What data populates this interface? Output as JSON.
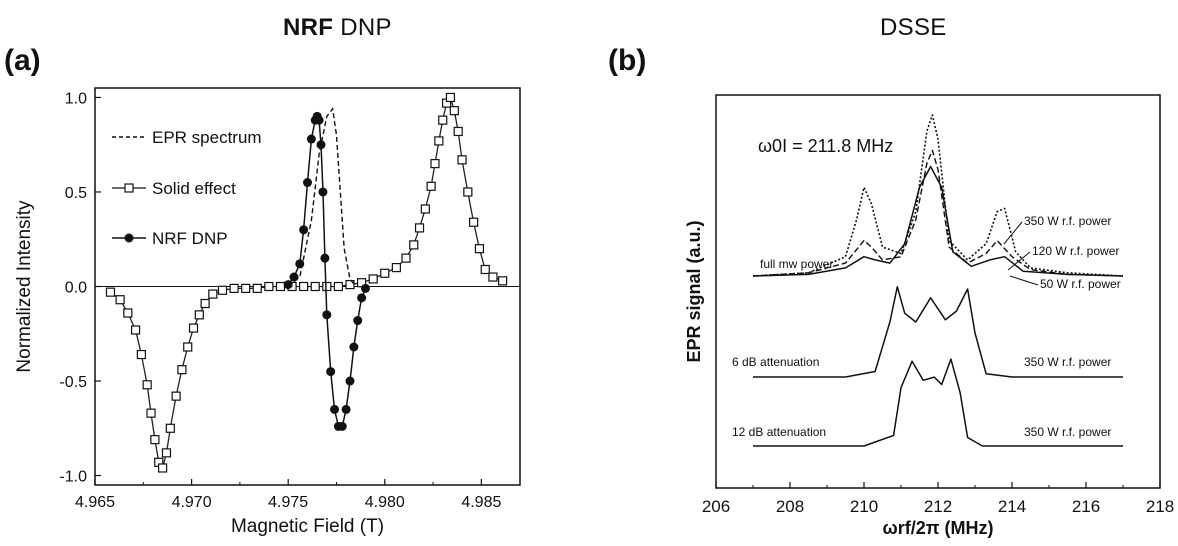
{
  "panel_a": {
    "title_bold": "NRF",
    "title_rest": " DNP",
    "label": "(a)"
  },
  "panel_b": {
    "title": "DSSE",
    "label": "(b)"
  },
  "chart_data": [
    {
      "type": "line",
      "panel": "(a)",
      "xlabel": "Magnetic Field (T)",
      "ylabel": "Normalized Intensity",
      "xlim": [
        4.965,
        4.987
      ],
      "ylim": [
        -1.05,
        1.05
      ],
      "xticks": [
        "4.965",
        "4.970",
        "4.975",
        "4.980",
        "4.985"
      ],
      "yticks": [
        "-1.0",
        "-0.5",
        "0.0",
        "0.5",
        "1.0"
      ],
      "zero_line": true,
      "grid": false,
      "legend_position": "top-left",
      "series": [
        {
          "name": "EPR spectrum",
          "style": "dashed",
          "x": [
            4.975,
            4.9756,
            4.9762,
            4.9766,
            4.977,
            4.9773,
            4.9775,
            4.9777,
            4.9779,
            4.9782,
            4.9785
          ],
          "y": [
            0.0,
            0.05,
            0.35,
            0.7,
            0.9,
            0.94,
            0.8,
            0.5,
            0.2,
            0.04,
            0.0
          ]
        },
        {
          "name": "Solid effect",
          "style": "open-square",
          "x": [
            4.9658,
            4.9663,
            4.9667,
            4.9671,
            4.9674,
            4.9677,
            4.9679,
            4.9681,
            4.9683,
            4.9685,
            4.9687,
            4.9689,
            4.9692,
            4.9695,
            4.9698,
            4.9701,
            4.9704,
            4.9707,
            4.9711,
            4.9716,
            4.9722,
            4.9728,
            4.9734,
            4.974,
            4.9746,
            4.9752,
            4.9758,
            4.9764,
            4.977,
            4.9776,
            4.9782,
            4.9788,
            4.9794,
            4.98,
            4.9806,
            4.9811,
            4.9815,
            4.9818,
            4.9821,
            4.9824,
            4.9826,
            4.9828,
            4.983,
            4.9832,
            4.9834,
            4.9836,
            4.9838,
            4.984,
            4.9843,
            4.9846,
            4.9849,
            4.9852,
            4.9856,
            4.9861
          ],
          "y": [
            -0.03,
            -0.07,
            -0.14,
            -0.23,
            -0.36,
            -0.52,
            -0.67,
            -0.81,
            -0.93,
            -0.96,
            -0.88,
            -0.75,
            -0.58,
            -0.44,
            -0.32,
            -0.22,
            -0.15,
            -0.09,
            -0.04,
            -0.02,
            -0.01,
            -0.01,
            -0.01,
            0.0,
            0.0,
            0.0,
            0.0,
            0.0,
            0.0,
            0.0,
            0.01,
            0.02,
            0.04,
            0.07,
            0.1,
            0.15,
            0.22,
            0.31,
            0.41,
            0.53,
            0.65,
            0.77,
            0.88,
            0.97,
            1.0,
            0.93,
            0.82,
            0.67,
            0.5,
            0.34,
            0.2,
            0.09,
            0.05,
            0.03
          ]
        },
        {
          "name": "NRF DNP",
          "style": "filled-circle",
          "x": [
            4.975,
            4.9753,
            4.9756,
            4.9758,
            4.976,
            4.9762,
            4.9764,
            4.9765,
            4.9766,
            4.9767,
            4.9768,
            4.9769,
            4.977,
            4.9772,
            4.9774,
            4.9776,
            4.9778,
            4.978,
            4.9782,
            4.9784,
            4.9786,
            4.9788,
            4.979
          ],
          "y": [
            0.01,
            0.05,
            0.12,
            0.3,
            0.55,
            0.78,
            0.88,
            0.9,
            0.88,
            0.75,
            0.5,
            0.15,
            -0.15,
            -0.45,
            -0.65,
            -0.74,
            -0.74,
            -0.65,
            -0.5,
            -0.32,
            -0.18,
            -0.06,
            -0.01
          ]
        }
      ]
    },
    {
      "type": "line",
      "panel": "(b)",
      "xlabel": "ωrf/2π (MHz)",
      "ylabel": "EPR signal (a.u.)",
      "xlim": [
        206,
        218
      ],
      "xticks": [
        "206",
        "208",
        "210",
        "212",
        "214",
        "216",
        "218"
      ],
      "yticks": [],
      "annotation": "ω0I = 211.8 MHz",
      "grid": false,
      "series": [
        {
          "name": "350 W r.f. power",
          "group": "full mw power",
          "style": "dotted",
          "x": [
            207.0,
            208.5,
            209.5,
            209.8,
            210.0,
            210.2,
            210.5,
            211.0,
            211.4,
            211.7,
            211.85,
            212.0,
            212.3,
            212.8,
            213.3,
            213.6,
            213.8,
            214.1,
            214.5,
            215.5,
            217.0
          ],
          "y": [
            0.0,
            0.02,
            0.12,
            0.35,
            0.55,
            0.45,
            0.18,
            0.14,
            0.4,
            0.9,
            1.0,
            0.85,
            0.22,
            0.1,
            0.2,
            0.4,
            0.42,
            0.15,
            0.05,
            0.02,
            0.0
          ]
        },
        {
          "name": "120 W r.f. power",
          "group": "full mw power",
          "style": "dashed",
          "x": [
            207.0,
            208.5,
            209.5,
            210.0,
            210.2,
            210.5,
            211.0,
            211.4,
            211.7,
            211.85,
            212.0,
            212.3,
            212.8,
            213.3,
            213.6,
            214.0,
            214.5,
            215.5,
            217.0
          ],
          "y": [
            0.0,
            0.02,
            0.08,
            0.22,
            0.18,
            0.1,
            0.12,
            0.35,
            0.7,
            0.78,
            0.66,
            0.18,
            0.08,
            0.14,
            0.22,
            0.12,
            0.04,
            0.01,
            0.0
          ]
        },
        {
          "name": "50 W r.f. power",
          "group": "full mw power",
          "style": "solid",
          "x": [
            207.0,
            208.5,
            209.5,
            210.0,
            210.3,
            210.7,
            211.1,
            211.5,
            211.8,
            212.1,
            212.4,
            212.9,
            213.4,
            213.8,
            214.3,
            215.5,
            217.0
          ],
          "y": [
            0.0,
            0.01,
            0.05,
            0.12,
            0.1,
            0.08,
            0.2,
            0.55,
            0.68,
            0.55,
            0.15,
            0.06,
            0.1,
            0.12,
            0.03,
            0.01,
            0.0
          ]
        },
        {
          "name": "6 dB attenuation",
          "label_right": "350 W r.f. power",
          "style": "solid",
          "x": [
            207.0,
            209.5,
            210.3,
            210.7,
            210.9,
            211.1,
            211.4,
            211.8,
            212.2,
            212.5,
            212.8,
            213.0,
            213.3,
            214.0,
            217.0
          ],
          "y": [
            0.0,
            0.0,
            0.05,
            0.5,
            0.82,
            0.58,
            0.5,
            0.72,
            0.52,
            0.6,
            0.8,
            0.4,
            0.03,
            0.0,
            0.0
          ]
        },
        {
          "name": "12 dB attenuation",
          "label_right": "350 W r.f. power",
          "style": "solid",
          "x": [
            207.0,
            210.0,
            210.8,
            211.0,
            211.3,
            211.6,
            211.9,
            212.1,
            212.35,
            212.6,
            212.8,
            213.2,
            217.0
          ],
          "y": [
            0.0,
            0.0,
            0.1,
            0.55,
            0.8,
            0.62,
            0.65,
            0.58,
            0.82,
            0.5,
            0.08,
            0.0,
            0.0
          ]
        }
      ]
    }
  ]
}
